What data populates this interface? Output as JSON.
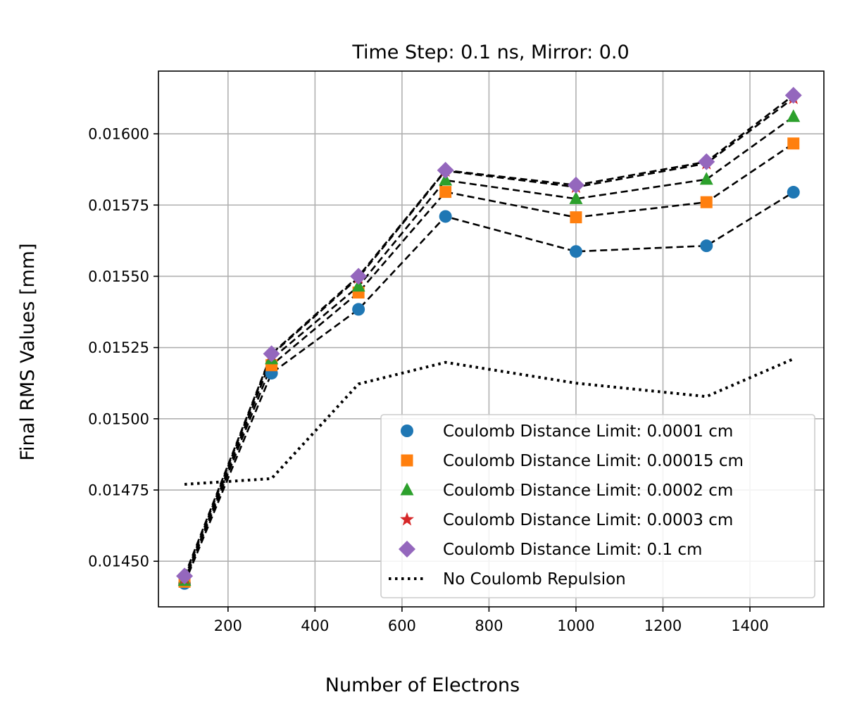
{
  "chart_data": {
    "type": "line",
    "title": "Time Step: 0.1 ns, Mirror: 0.0",
    "xlabel": "Number of Electrons",
    "ylabel": "Final RMS Values [mm]",
    "xlim": [
      40,
      1570
    ],
    "ylim": [
      0.01434,
      0.01622
    ],
    "x_ticks": [
      200,
      400,
      600,
      800,
      1000,
      1200,
      1400
    ],
    "y_ticks": [
      0.0145,
      0.01475,
      0.015,
      0.01525,
      0.0155,
      0.01575,
      0.016
    ],
    "y_tick_labels": [
      "0.01450",
      "0.01475",
      "0.01500",
      "0.01525",
      "0.01550",
      "0.01575",
      "0.01600"
    ],
    "grid": true,
    "legend_position": "lower-right",
    "x": [
      100,
      300,
      500,
      700,
      1000,
      1300,
      1500
    ],
    "series": [
      {
        "name": "Coulomb Distance Limit: 0.0001 cm",
        "marker": "circle",
        "color": "#1f77b4",
        "values": [
          0.014422,
          0.01516,
          0.015384,
          0.01571,
          0.015587,
          0.015607,
          0.015795
        ]
      },
      {
        "name": "Coulomb Distance Limit: 0.00015 cm",
        "marker": "square",
        "color": "#ff7f0e",
        "values": [
          0.014428,
          0.015188,
          0.015443,
          0.015796,
          0.015707,
          0.01576,
          0.015966
        ]
      },
      {
        "name": "Coulomb Distance Limit: 0.0002 cm",
        "marker": "triangle",
        "color": "#2ca02c",
        "values": [
          0.014432,
          0.01521,
          0.015465,
          0.015837,
          0.015772,
          0.01584,
          0.01606
        ]
      },
      {
        "name": "Coulomb Distance Limit: 0.0003 cm",
        "marker": "star",
        "color": "#d62728",
        "values": [
          0.01444,
          0.015225,
          0.015495,
          0.01587,
          0.015813,
          0.015896,
          0.016125
        ]
      },
      {
        "name": "Coulomb Distance Limit: 0.1 cm",
        "marker": "diamond",
        "color": "#9467bd",
        "values": [
          0.014448,
          0.015228,
          0.0155,
          0.015872,
          0.01582,
          0.015902,
          0.016135
        ]
      }
    ],
    "baseline": {
      "name": "No Coulomb Repulsion",
      "style": "dotted",
      "color": "#000000",
      "values": [
        0.01477,
        0.01479,
        0.015122,
        0.015198,
        0.015125,
        0.015078,
        0.01521
      ]
    }
  }
}
